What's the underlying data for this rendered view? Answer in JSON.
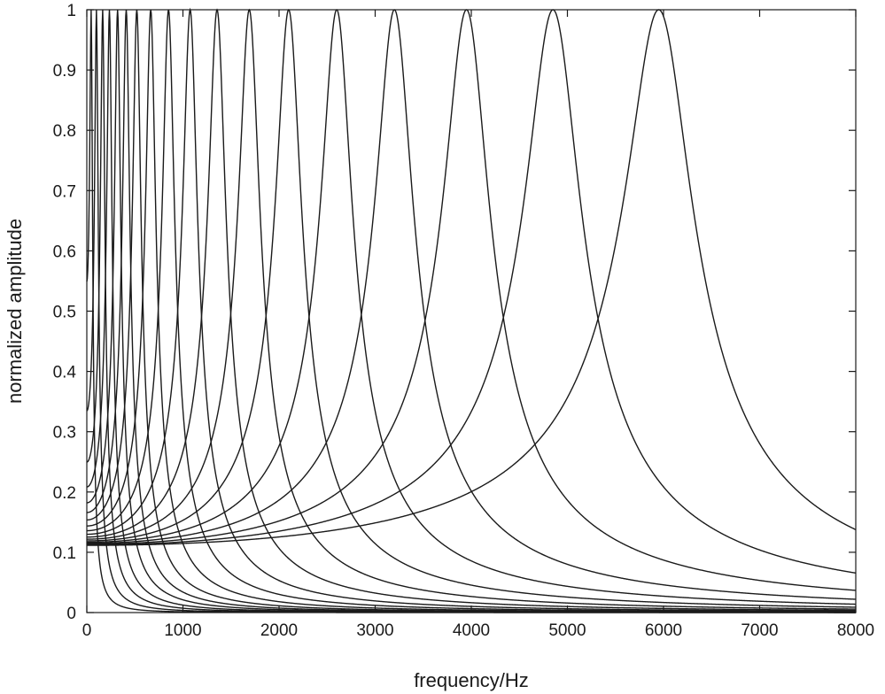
{
  "chart_data": {
    "type": "line",
    "title": "",
    "xlabel": "frequency/Hz",
    "ylabel": "normalized amplitude",
    "xlim": [
      0,
      8000
    ],
    "ylim": [
      0,
      1
    ],
    "x_ticks": [
      "0",
      "1000",
      "2000",
      "3000",
      "4000",
      "5000",
      "6000",
      "7000",
      "8000"
    ],
    "y_ticks": [
      "0",
      "0.1",
      "0.2",
      "0.3",
      "0.4",
      "0.5",
      "0.6",
      "0.7",
      "0.8",
      "0.9",
      "1"
    ],
    "x_tick_values": [
      0,
      1000,
      2000,
      3000,
      4000,
      5000,
      6000,
      7000,
      8000
    ],
    "y_tick_values": [
      0,
      0.1,
      0.2,
      0.3,
      0.4,
      0.5,
      0.6,
      0.7,
      0.8,
      0.9,
      1
    ],
    "grid": false,
    "line_color": "#1a1a1a",
    "peak_value": 1,
    "series": [
      {
        "center_hz": 45
      },
      {
        "center_hz": 100
      },
      {
        "center_hz": 165
      },
      {
        "center_hz": 235
      },
      {
        "center_hz": 320
      },
      {
        "center_hz": 410
      },
      {
        "center_hz": 520
      },
      {
        "center_hz": 665
      },
      {
        "center_hz": 850
      },
      {
        "center_hz": 1075
      },
      {
        "center_hz": 1355
      },
      {
        "center_hz": 1690
      },
      {
        "center_hz": 2100
      },
      {
        "center_hz": 2600
      },
      {
        "center_hz": 3200
      },
      {
        "center_hz": 3950
      },
      {
        "center_hz": 4850
      },
      {
        "center_hz": 5950
      }
    ]
  }
}
